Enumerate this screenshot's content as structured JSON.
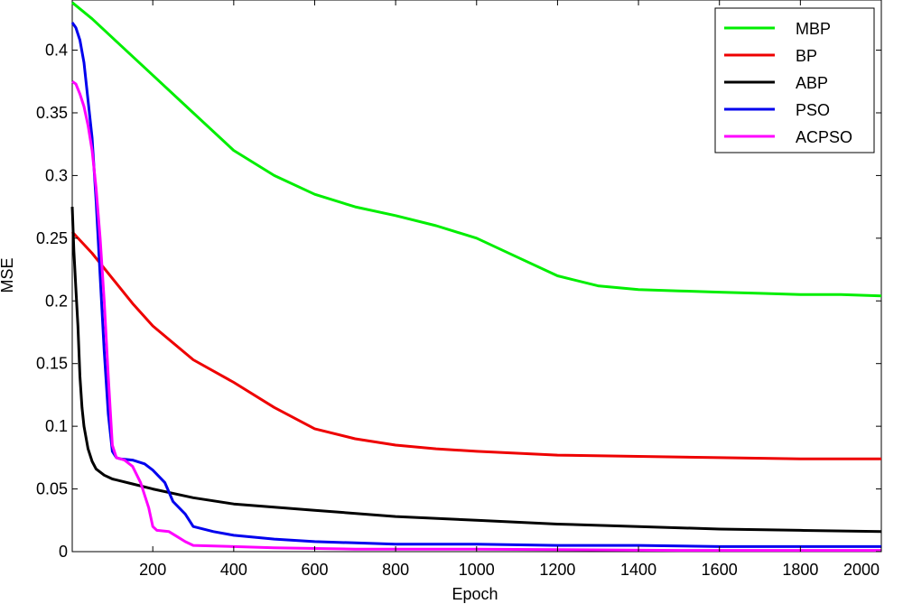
{
  "chart_data": {
    "type": "line",
    "xlabel": "Epoch",
    "ylabel": "MSE",
    "xlim": [
      1,
      2000
    ],
    "ylim": [
      0,
      0.44
    ],
    "xticks": [
      200,
      400,
      600,
      800,
      1000,
      1200,
      1400,
      1600,
      1800,
      2000
    ],
    "yticks": [
      0,
      0.05,
      0.1,
      0.15,
      0.2,
      0.25,
      0.3,
      0.35,
      0.4
    ],
    "xtick_labels": [
      "200",
      "400",
      "600",
      "800",
      "1000",
      "1200",
      "1400",
      "1600",
      "1800",
      "2000"
    ],
    "ytick_labels": [
      "0",
      "0.05",
      "0.1",
      "0.15",
      "0.2",
      "0.25",
      "0.3",
      "0.35",
      "0.4"
    ],
    "grid": false,
    "legend_position": "top-right",
    "series": [
      {
        "name": "MBP",
        "color": "#00ee00",
        "x": [
          1,
          50,
          100,
          200,
          300,
          400,
          500,
          600,
          700,
          800,
          900,
          1000,
          1100,
          1200,
          1300,
          1400,
          1500,
          1600,
          1700,
          1800,
          1900,
          2000
        ],
        "y": [
          0.438,
          0.425,
          0.41,
          0.38,
          0.35,
          0.32,
          0.3,
          0.285,
          0.275,
          0.268,
          0.26,
          0.25,
          0.235,
          0.22,
          0.212,
          0.209,
          0.208,
          0.207,
          0.206,
          0.205,
          0.205,
          0.204
        ]
      },
      {
        "name": "BP",
        "color": "#ee0000",
        "x": [
          1,
          50,
          100,
          150,
          200,
          300,
          400,
          500,
          600,
          700,
          800,
          900,
          1000,
          1200,
          1400,
          1600,
          1800,
          2000
        ],
        "y": [
          0.255,
          0.238,
          0.218,
          0.198,
          0.18,
          0.153,
          0.135,
          0.115,
          0.098,
          0.09,
          0.085,
          0.082,
          0.08,
          0.077,
          0.076,
          0.075,
          0.074,
          0.074
        ]
      },
      {
        "name": "ABP",
        "color": "#000000",
        "x": [
          1,
          5,
          10,
          15,
          20,
          25,
          30,
          40,
          50,
          60,
          80,
          100,
          150,
          200,
          300,
          400,
          600,
          800,
          1000,
          1200,
          1400,
          1600,
          1800,
          2000
        ],
        "y": [
          0.275,
          0.24,
          0.21,
          0.18,
          0.14,
          0.115,
          0.1,
          0.082,
          0.072,
          0.066,
          0.061,
          0.058,
          0.054,
          0.05,
          0.043,
          0.038,
          0.033,
          0.028,
          0.025,
          0.022,
          0.02,
          0.018,
          0.017,
          0.016
        ]
      },
      {
        "name": "PSO",
        "color": "#0000ee",
        "x": [
          1,
          10,
          20,
          30,
          40,
          50,
          60,
          70,
          80,
          90,
          100,
          110,
          120,
          150,
          180,
          200,
          230,
          250,
          280,
          300,
          350,
          400,
          500,
          600,
          700,
          800,
          1000,
          1200,
          1400,
          1600,
          1800,
          2000
        ],
        "y": [
          0.422,
          0.418,
          0.408,
          0.39,
          0.36,
          0.33,
          0.28,
          0.22,
          0.16,
          0.11,
          0.08,
          0.075,
          0.074,
          0.073,
          0.07,
          0.065,
          0.055,
          0.04,
          0.03,
          0.02,
          0.016,
          0.013,
          0.01,
          0.008,
          0.007,
          0.006,
          0.006,
          0.005,
          0.005,
          0.004,
          0.004,
          0.004
        ]
      },
      {
        "name": "ACPSO",
        "color": "#ff00ff",
        "x": [
          1,
          10,
          20,
          30,
          40,
          50,
          60,
          70,
          80,
          90,
          100,
          110,
          130,
          150,
          170,
          190,
          200,
          210,
          240,
          260,
          280,
          300,
          400,
          500,
          700,
          1000,
          1500,
          2000
        ],
        "y": [
          0.375,
          0.373,
          0.365,
          0.355,
          0.34,
          0.32,
          0.29,
          0.25,
          0.2,
          0.14,
          0.085,
          0.075,
          0.073,
          0.068,
          0.055,
          0.035,
          0.02,
          0.017,
          0.016,
          0.012,
          0.008,
          0.005,
          0.004,
          0.003,
          0.002,
          0.002,
          0.001,
          0.001
        ]
      }
    ]
  }
}
